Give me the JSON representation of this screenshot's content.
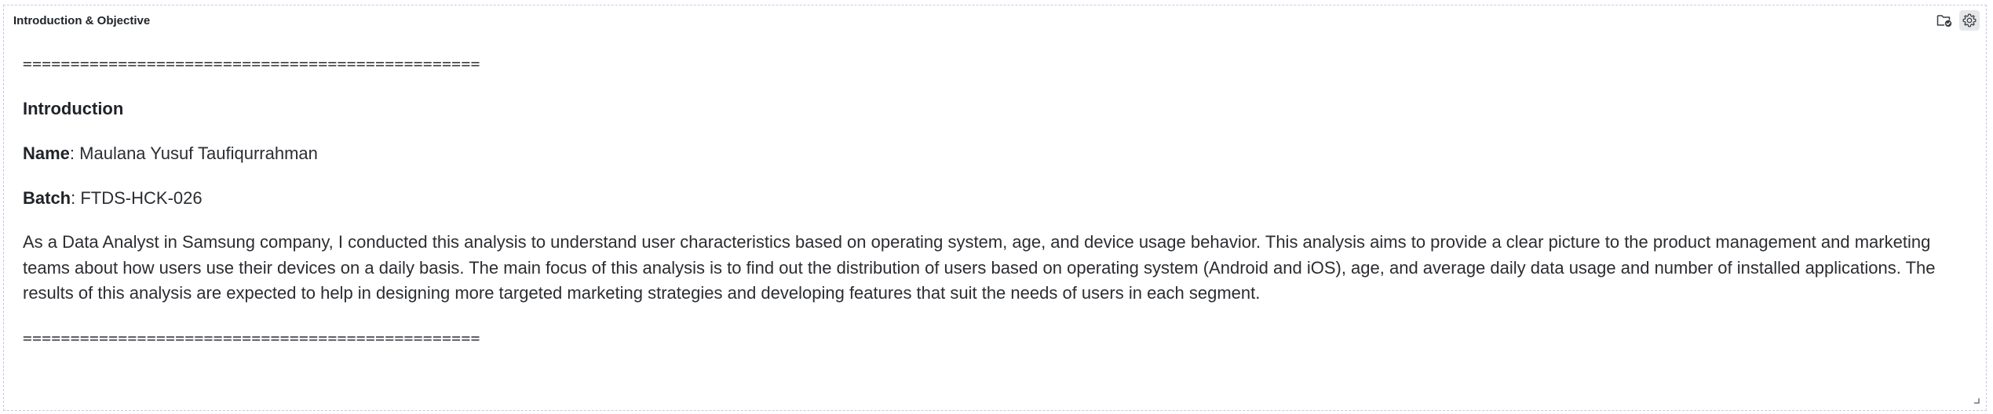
{
  "panel": {
    "title": "Introduction & Objective",
    "tools": [
      {
        "icon": "folder-check-icon"
      },
      {
        "icon": "gear-icon",
        "active": true
      }
    ]
  },
  "content": {
    "separator_top": "================================================",
    "heading": "Introduction",
    "name_label": "Name",
    "name_value": ": Maulana Yusuf Taufiqurrahman",
    "batch_label": "Batch",
    "batch_value": ": FTDS-HCK-026",
    "paragraph": "As a Data Analyst in Samsung company, I conducted this analysis to understand user characteristics based on operating system, age, and device usage behavior. This analysis aims to provide a clear picture to the product management and marketing teams about how users use their devices on a daily basis. The main focus of this analysis is to find out the distribution of users based on operating system (Android and iOS), age, and average daily data usage and number of installed applications. The results of this analysis are expected to help in designing more targeted marketing strategies and developing features that suit the needs of users in each segment.",
    "separator_bottom": "================================================"
  },
  "colors": {
    "panel_border": "#c9c6ea",
    "text": "#2b2d31",
    "active_tool_bg": "#e6e7ea"
  }
}
